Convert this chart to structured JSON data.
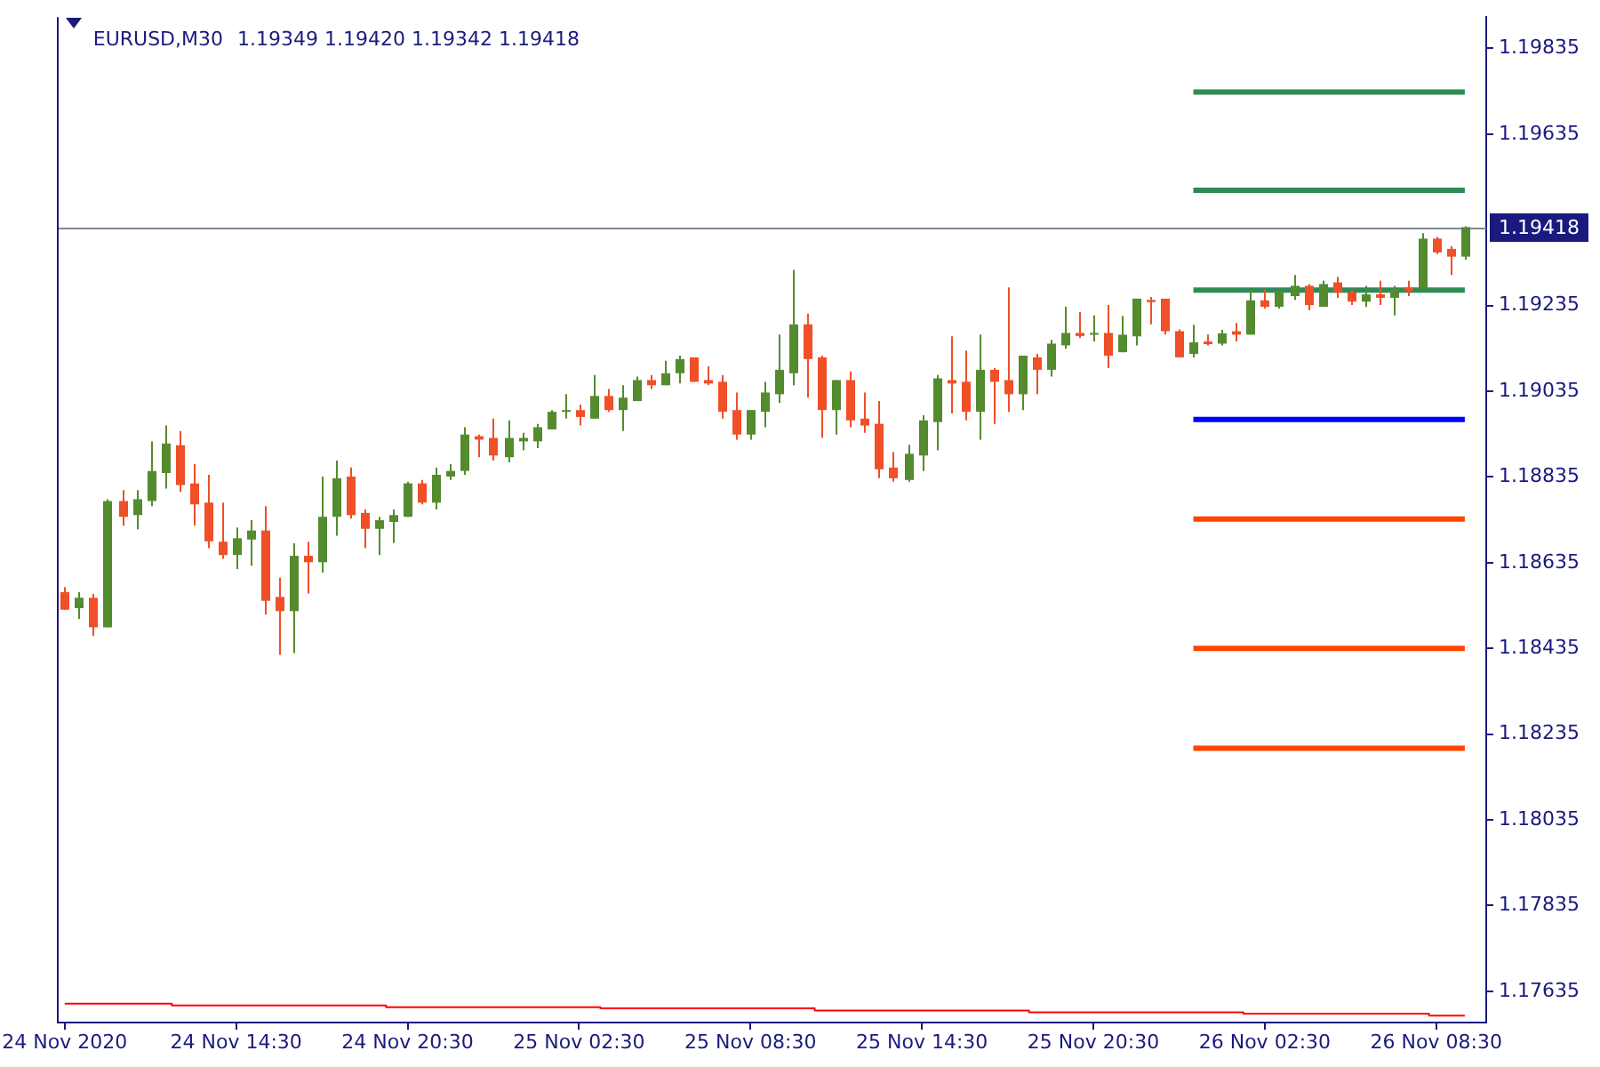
{
  "chart_data": {
    "type": "candlestick",
    "title": "EURUSD,M30",
    "subtitle": "1.19349 1.19420 1.19342 1.19418",
    "categories": [
      "24 Nov 2020",
      null,
      null,
      null,
      null,
      null,
      null,
      null,
      null,
      null,
      null,
      null,
      "24 Nov 14:30",
      null,
      null,
      null,
      null,
      null,
      null,
      null,
      null,
      null,
      null,
      null,
      "24 Nov 20:30",
      null,
      null,
      null,
      null,
      null,
      null,
      null,
      null,
      null,
      null,
      null,
      "25 Nov 02:30",
      null,
      null,
      null,
      null,
      null,
      null,
      null,
      null,
      null,
      null,
      null,
      "25 Nov 08:30",
      null,
      null,
      null,
      null,
      null,
      null,
      null,
      null,
      null,
      null,
      null,
      "25 Nov 14:30",
      null,
      null,
      null,
      null,
      null,
      null,
      null,
      null,
      null,
      null,
      null,
      "25 Nov 20:30",
      null,
      null,
      null,
      null,
      null,
      null,
      null,
      null,
      null,
      null,
      null,
      "26 Nov 02:30",
      null,
      null,
      null,
      null,
      null,
      null,
      null,
      null,
      null,
      null,
      null,
      "26 Nov 08:30",
      null,
      null
    ],
    "ohlc": [
      [
        1.18566,
        1.18578,
        1.18525,
        1.18525
      ],
      [
        1.18529,
        1.18566,
        1.18504,
        1.18553
      ],
      [
        1.18553,
        1.18562,
        1.18464,
        1.18484
      ],
      [
        1.18484,
        1.18783,
        1.18484,
        1.18779
      ],
      [
        1.18779,
        1.18804,
        1.18721,
        1.18742
      ],
      [
        1.18746,
        1.18804,
        1.18713,
        1.18783
      ],
      [
        1.18779,
        1.18918,
        1.18767,
        1.18849
      ],
      [
        1.18844,
        1.18955,
        1.18808,
        1.18913
      ],
      [
        1.18909,
        1.18942,
        1.188,
        1.18816
      ],
      [
        1.1882,
        1.18865,
        1.18721,
        1.18771
      ],
      [
        1.18775,
        1.1884,
        1.18669,
        1.18685
      ],
      [
        1.18684,
        1.18775,
        1.18644,
        1.18653
      ],
      [
        1.18653,
        1.18717,
        1.1862,
        1.18692
      ],
      [
        1.18689,
        1.18734,
        1.18628,
        1.1871
      ],
      [
        1.1871,
        1.18767,
        1.18514,
        1.18546
      ],
      [
        1.18555,
        1.186,
        1.1842,
        1.18522
      ],
      [
        1.18522,
        1.1868,
        1.18424,
        1.18651
      ],
      [
        1.18651,
        1.18684,
        1.18563,
        1.18636
      ],
      [
        1.18636,
        1.18836,
        1.18612,
        1.18742
      ],
      [
        1.18742,
        1.18873,
        1.18698,
        1.18832
      ],
      [
        1.18836,
        1.18857,
        1.18738,
        1.18746
      ],
      [
        1.18751,
        1.18759,
        1.18669,
        1.18714
      ],
      [
        1.18714,
        1.18742,
        1.18653,
        1.18734
      ],
      [
        1.1873,
        1.18759,
        1.18681,
        1.18746
      ],
      [
        1.18742,
        1.18824,
        1.18742,
        1.1882
      ],
      [
        1.1882,
        1.18828,
        1.18771,
        1.18775
      ],
      [
        1.18775,
        1.18857,
        1.18759,
        1.1884
      ],
      [
        1.18836,
        1.18865,
        1.18828,
        1.18849
      ],
      [
        1.18849,
        1.18951,
        1.1884,
        1.18934
      ],
      [
        1.1893,
        1.18934,
        1.18881,
        1.18922
      ],
      [
        1.18926,
        1.18971,
        1.18873,
        1.18885
      ],
      [
        1.18881,
        1.18967,
        1.18869,
        1.18926
      ],
      [
        1.18918,
        1.18938,
        1.18897,
        1.18926
      ],
      [
        1.18918,
        1.18959,
        1.18902,
        1.18951
      ],
      [
        1.18946,
        1.18991,
        1.18946,
        1.18987
      ],
      [
        1.18987,
        1.19028,
        1.18971,
        1.18991
      ],
      [
        1.18991,
        1.19004,
        1.18955,
        1.18975
      ],
      [
        1.18971,
        1.19073,
        1.18971,
        1.19024
      ],
      [
        1.19024,
        1.1904,
        1.18987,
        1.18991
      ],
      [
        1.18991,
        1.19049,
        1.18942,
        1.1902
      ],
      [
        1.19012,
        1.19069,
        1.19012,
        1.19061
      ],
      [
        1.19061,
        1.19073,
        1.1904,
        1.19049
      ],
      [
        1.19049,
        1.19106,
        1.19049,
        1.19077
      ],
      [
        1.19077,
        1.19118,
        1.19053,
        1.1911
      ],
      [
        1.19114,
        1.19114,
        1.19057,
        1.19057
      ],
      [
        1.19061,
        1.19093,
        1.19049,
        1.19053
      ],
      [
        1.19057,
        1.19073,
        1.18971,
        1.18987
      ],
      [
        1.18991,
        1.19032,
        1.18922,
        1.18934
      ],
      [
        1.18934,
        1.18991,
        1.18922,
        1.18991
      ],
      [
        1.18987,
        1.19057,
        1.18951,
        1.19032
      ],
      [
        1.19028,
        1.19167,
        1.19008,
        1.19085
      ],
      [
        1.19077,
        1.19318,
        1.19049,
        1.19191
      ],
      [
        1.19191,
        1.19216,
        1.1902,
        1.1911
      ],
      [
        1.19114,
        1.19118,
        1.18926,
        1.18991
      ],
      [
        1.18991,
        1.19061,
        1.18934,
        1.19061
      ],
      [
        1.19061,
        1.19081,
        1.18951,
        1.18967
      ],
      [
        1.18971,
        1.19032,
        1.18938,
        1.18955
      ],
      [
        1.18959,
        1.19012,
        1.18832,
        1.18853
      ],
      [
        1.18857,
        1.18893,
        1.18824,
        1.18832
      ],
      [
        1.18828,
        1.1891,
        1.18824,
        1.18889
      ],
      [
        1.18885,
        1.18979,
        1.18849,
        1.18967
      ],
      [
        1.18963,
        1.19073,
        1.18897,
        1.19065
      ],
      [
        1.19061,
        1.19163,
        1.18983,
        1.19053
      ],
      [
        1.19057,
        1.1913,
        1.18967,
        1.18987
      ],
      [
        1.18987,
        1.19167,
        1.18922,
        1.19085
      ],
      [
        1.19085,
        1.19089,
        1.18959,
        1.19057
      ],
      [
        1.19061,
        1.19277,
        1.18987,
        1.19028
      ],
      [
        1.19028,
        1.19118,
        1.18991,
        1.19118
      ],
      [
        1.19114,
        1.19122,
        1.19028,
        1.19085
      ],
      [
        1.19085,
        1.19155,
        1.19069,
        1.19146
      ],
      [
        1.19142,
        1.19232,
        1.19134,
        1.19171
      ],
      [
        1.19171,
        1.1922,
        1.19159,
        1.19164
      ],
      [
        1.19167,
        1.19212,
        1.19151,
        1.19171
      ],
      [
        1.19171,
        1.19236,
        1.19089,
        1.19118
      ],
      [
        1.19126,
        1.19211,
        1.19126,
        1.19167
      ],
      [
        1.19163,
        1.19251,
        1.19142,
        1.19251
      ],
      [
        1.19248,
        1.19255,
        1.19191,
        1.19243
      ],
      [
        1.19251,
        1.19251,
        1.19167,
        1.19175
      ],
      [
        1.19175,
        1.19179,
        1.19114,
        1.19114
      ],
      [
        1.19122,
        1.1919,
        1.19114,
        1.19149
      ],
      [
        1.19151,
        1.19167,
        1.19142,
        1.19145
      ],
      [
        1.19146,
        1.19178,
        1.19142,
        1.1917
      ],
      [
        1.19175,
        1.19194,
        1.19151,
        1.19167
      ],
      [
        1.19167,
        1.19273,
        1.19167,
        1.19247
      ],
      [
        1.19247,
        1.19273,
        1.19228,
        1.19232
      ],
      [
        1.19232,
        1.19269,
        1.19228,
        1.19269
      ],
      [
        1.19257,
        1.19306,
        1.19248,
        1.19281
      ],
      [
        1.19281,
        1.19285,
        1.19224,
        1.19236
      ],
      [
        1.19232,
        1.19293,
        1.19232,
        1.19285
      ],
      [
        1.19289,
        1.19302,
        1.19253,
        1.19265
      ],
      [
        1.19266,
        1.19273,
        1.19236,
        1.19244
      ],
      [
        1.19244,
        1.19281,
        1.19232,
        1.19261
      ],
      [
        1.19261,
        1.19293,
        1.19236,
        1.19253
      ],
      [
        1.19253,
        1.19281,
        1.19212,
        1.19273
      ],
      [
        1.19277,
        1.19293,
        1.19257,
        1.19269
      ],
      [
        1.19273,
        1.19404,
        1.19273,
        1.19391
      ],
      [
        1.19391,
        1.19395,
        1.19355,
        1.19359
      ],
      [
        1.19367,
        1.19373,
        1.19306,
        1.19349
      ],
      [
        1.19349,
        1.1942,
        1.19342,
        1.19418
      ]
    ],
    "colors": [
      "#f04f28",
      "#558b2f",
      "#f04f28",
      "#558b2f",
      "#f04f28",
      "#558b2f",
      "#558b2f",
      "#558b2f",
      "#f04f28",
      "#f04f28",
      "#f04f28",
      "#f04f28",
      "#558b2f",
      "#558b2f",
      "#f04f28",
      "#f04f28",
      "#558b2f",
      "#f04f28",
      "#558b2f",
      "#558b2f",
      "#f04f28",
      "#f04f28",
      "#558b2f",
      "#558b2f",
      "#558b2f",
      "#f04f28",
      "#558b2f",
      "#558b2f",
      "#558b2f",
      "#f04f28",
      "#f04f28",
      "#558b2f",
      "#558b2f",
      "#558b2f",
      "#558b2f",
      "#558b2f",
      "#f04f28",
      "#558b2f",
      "#f04f28",
      "#558b2f",
      "#558b2f",
      "#f04f28",
      "#558b2f",
      "#558b2f",
      "#f04f28",
      "#f04f28",
      "#f04f28",
      "#f04f28",
      "#558b2f",
      "#558b2f",
      "#558b2f",
      "#558b2f",
      "#f04f28",
      "#f04f28",
      "#558b2f",
      "#f04f28",
      "#f04f28",
      "#f04f28",
      "#f04f28",
      "#558b2f",
      "#558b2f",
      "#558b2f",
      "#f04f28",
      "#f04f28",
      "#558b2f",
      "#f04f28",
      "#f04f28",
      "#558b2f",
      "#f04f28",
      "#558b2f",
      "#558b2f",
      "#f04f28",
      "#558b2f",
      "#f04f28",
      "#558b2f",
      "#558b2f",
      "#f04f28",
      "#f04f28",
      "#f04f28",
      "#558b2f",
      "#f04f28",
      "#558b2f",
      "#f04f28",
      "#558b2f",
      "#f04f28",
      "#558b2f",
      "#558b2f",
      "#f04f28",
      "#558b2f",
      "#f04f28",
      "#f04f28",
      "#558b2f",
      "#f04f28",
      "#558b2f",
      "#f04f28",
      "#558b2f",
      "#f04f28",
      "#f04f28",
      "#558b2f"
    ],
    "series": [
      {
        "type": "line",
        "color": "#2e8b57",
        "values": [
          null,
          null,
          null,
          null,
          null,
          null,
          null,
          null,
          null,
          null,
          null,
          null,
          null,
          null,
          null,
          null,
          null,
          null,
          null,
          null,
          null,
          null,
          null,
          null,
          null,
          null,
          null,
          null,
          null,
          null,
          null,
          null,
          null,
          null,
          null,
          null,
          null,
          null,
          null,
          null,
          null,
          null,
          null,
          null,
          null,
          null,
          null,
          null,
          null,
          null,
          null,
          null,
          null,
          null,
          null,
          null,
          null,
          null,
          null,
          null,
          null,
          null,
          null,
          null,
          null,
          null,
          null,
          null,
          null,
          null,
          null,
          null,
          null,
          null,
          null,
          null,
          null,
          null,
          null,
          1.19733,
          1.19733,
          1.19733,
          1.19733,
          1.19733,
          1.19733,
          1.19733,
          1.19733,
          1.19733,
          1.19733,
          1.19733,
          1.19733,
          1.19733,
          1.19733,
          1.19733,
          1.19733,
          1.19733,
          1.19733,
          1.19733,
          1.19733
        ]
      },
      {
        "type": "line",
        "color": "#2e8b57",
        "values": [
          null,
          null,
          null,
          null,
          null,
          null,
          null,
          null,
          null,
          null,
          null,
          null,
          null,
          null,
          null,
          null,
          null,
          null,
          null,
          null,
          null,
          null,
          null,
          null,
          null,
          null,
          null,
          null,
          null,
          null,
          null,
          null,
          null,
          null,
          null,
          null,
          null,
          null,
          null,
          null,
          null,
          null,
          null,
          null,
          null,
          null,
          null,
          null,
          null,
          null,
          null,
          null,
          null,
          null,
          null,
          null,
          null,
          null,
          null,
          null,
          null,
          null,
          null,
          null,
          null,
          null,
          null,
          null,
          null,
          null,
          null,
          null,
          null,
          null,
          null,
          null,
          null,
          null,
          null,
          1.19504,
          1.19504,
          1.19504,
          1.19504,
          1.19504,
          1.19504,
          1.19504,
          1.19504,
          1.19504,
          1.19504,
          1.19504,
          1.19504,
          1.19504,
          1.19504,
          1.19504,
          1.19504,
          1.19504,
          1.19504,
          1.19504,
          1.19504
        ]
      },
      {
        "type": "line",
        "color": "#2e8b57",
        "values": [
          null,
          null,
          null,
          null,
          null,
          null,
          null,
          null,
          null,
          null,
          null,
          null,
          null,
          null,
          null,
          null,
          null,
          null,
          null,
          null,
          null,
          null,
          null,
          null,
          null,
          null,
          null,
          null,
          null,
          null,
          null,
          null,
          null,
          null,
          null,
          null,
          null,
          null,
          null,
          null,
          null,
          null,
          null,
          null,
          null,
          null,
          null,
          null,
          null,
          null,
          null,
          null,
          null,
          null,
          null,
          null,
          null,
          null,
          null,
          null,
          null,
          null,
          null,
          null,
          null,
          null,
          null,
          null,
          null,
          null,
          null,
          null,
          null,
          null,
          null,
          null,
          null,
          null,
          null,
          1.19271,
          1.19271,
          1.19271,
          1.19271,
          1.19271,
          1.19271,
          1.19271,
          1.19271,
          1.19271,
          1.19271,
          1.19271,
          1.19271,
          1.19271,
          1.19271,
          1.19271,
          1.19271,
          1.19271,
          1.19271,
          1.19271,
          1.19271
        ]
      },
      {
        "type": "line",
        "color": "#0000ff",
        "values": [
          null,
          null,
          null,
          null,
          null,
          null,
          null,
          null,
          null,
          null,
          null,
          null,
          null,
          null,
          null,
          null,
          null,
          null,
          null,
          null,
          null,
          null,
          null,
          null,
          null,
          null,
          null,
          null,
          null,
          null,
          null,
          null,
          null,
          null,
          null,
          null,
          null,
          null,
          null,
          null,
          null,
          null,
          null,
          null,
          null,
          null,
          null,
          null,
          null,
          null,
          null,
          null,
          null,
          null,
          null,
          null,
          null,
          null,
          null,
          null,
          null,
          null,
          null,
          null,
          null,
          null,
          null,
          null,
          null,
          null,
          null,
          null,
          null,
          null,
          null,
          null,
          null,
          null,
          null,
          1.18969,
          1.18969,
          1.18969,
          1.18969,
          1.18969,
          1.18969,
          1.18969,
          1.18969,
          1.18969,
          1.18969,
          1.18969,
          1.18969,
          1.18969,
          1.18969,
          1.18969,
          1.18969,
          1.18969,
          1.18969,
          1.18969,
          1.18969
        ]
      },
      {
        "type": "line",
        "color": "#ff4500",
        "values": [
          null,
          null,
          null,
          null,
          null,
          null,
          null,
          null,
          null,
          null,
          null,
          null,
          null,
          null,
          null,
          null,
          null,
          null,
          null,
          null,
          null,
          null,
          null,
          null,
          null,
          null,
          null,
          null,
          null,
          null,
          null,
          null,
          null,
          null,
          null,
          null,
          null,
          null,
          null,
          null,
          null,
          null,
          null,
          null,
          null,
          null,
          null,
          null,
          null,
          null,
          null,
          null,
          null,
          null,
          null,
          null,
          null,
          null,
          null,
          null,
          null,
          null,
          null,
          null,
          null,
          null,
          null,
          null,
          null,
          null,
          null,
          null,
          null,
          null,
          null,
          null,
          null,
          null,
          null,
          1.18737,
          1.18737,
          1.18737,
          1.18737,
          1.18737,
          1.18737,
          1.18737,
          1.18737,
          1.18737,
          1.18737,
          1.18737,
          1.18737,
          1.18737,
          1.18737,
          1.18737,
          1.18737,
          1.18737,
          1.18737,
          1.18737,
          1.18737
        ]
      },
      {
        "type": "line",
        "color": "#ff4500",
        "values": [
          null,
          null,
          null,
          null,
          null,
          null,
          null,
          null,
          null,
          null,
          null,
          null,
          null,
          null,
          null,
          null,
          null,
          null,
          null,
          null,
          null,
          null,
          null,
          null,
          null,
          null,
          null,
          null,
          null,
          null,
          null,
          null,
          null,
          null,
          null,
          null,
          null,
          null,
          null,
          null,
          null,
          null,
          null,
          null,
          null,
          null,
          null,
          null,
          null,
          null,
          null,
          null,
          null,
          null,
          null,
          null,
          null,
          null,
          null,
          null,
          null,
          null,
          null,
          null,
          null,
          null,
          null,
          null,
          null,
          null,
          null,
          null,
          null,
          null,
          null,
          null,
          null,
          null,
          null,
          1.18435,
          1.18435,
          1.18435,
          1.18435,
          1.18435,
          1.18435,
          1.18435,
          1.18435,
          1.18435,
          1.18435,
          1.18435,
          1.18435,
          1.18435,
          1.18435,
          1.18435,
          1.18435,
          1.18435,
          1.18435,
          1.18435,
          1.18435
        ]
      },
      {
        "type": "line",
        "color": "#ff4500",
        "values": [
          null,
          null,
          null,
          null,
          null,
          null,
          null,
          null,
          null,
          null,
          null,
          null,
          null,
          null,
          null,
          null,
          null,
          null,
          null,
          null,
          null,
          null,
          null,
          null,
          null,
          null,
          null,
          null,
          null,
          null,
          null,
          null,
          null,
          null,
          null,
          null,
          null,
          null,
          null,
          null,
          null,
          null,
          null,
          null,
          null,
          null,
          null,
          null,
          null,
          null,
          null,
          null,
          null,
          null,
          null,
          null,
          null,
          null,
          null,
          null,
          null,
          null,
          null,
          null,
          null,
          null,
          null,
          null,
          null,
          null,
          null,
          null,
          null,
          null,
          null,
          null,
          null,
          null,
          null,
          1.18202,
          1.18202,
          1.18202,
          1.18202,
          1.18202,
          1.18202,
          1.18202,
          1.18202,
          1.18202,
          1.18202,
          1.18202,
          1.18202,
          1.18202,
          1.18202,
          1.18202,
          1.18202,
          1.18202,
          1.18202,
          1.18202,
          1.18202
        ]
      },
      {
        "type": "step",
        "color": "#ff0000",
        "values": [
          1.17606,
          1.17606,
          1.17606,
          1.17606,
          1.17606,
          1.17606,
          1.17606,
          1.17606,
          1.17602,
          1.17602,
          1.17602,
          1.17602,
          1.17602,
          1.17602,
          1.17602,
          1.17602,
          1.17602,
          1.17602,
          1.17602,
          1.17602,
          1.17602,
          1.17602,
          1.17602,
          1.17598,
          1.17598,
          1.17598,
          1.17598,
          1.17598,
          1.17598,
          1.17598,
          1.17598,
          1.17598,
          1.17598,
          1.17598,
          1.17598,
          1.17598,
          1.17598,
          1.17598,
          1.17595,
          1.17595,
          1.17595,
          1.17595,
          1.17595,
          1.17595,
          1.17595,
          1.17595,
          1.17595,
          1.17595,
          1.17595,
          1.17595,
          1.17595,
          1.17595,
          1.17595,
          1.1759,
          1.1759,
          1.1759,
          1.1759,
          1.1759,
          1.1759,
          1.1759,
          1.1759,
          1.1759,
          1.1759,
          1.1759,
          1.1759,
          1.1759,
          1.1759,
          1.1759,
          1.17586,
          1.17586,
          1.17586,
          1.17586,
          1.17586,
          1.17586,
          1.17586,
          1.17586,
          1.17586,
          1.17586,
          1.17586,
          1.17586,
          1.17586,
          1.17586,
          1.17586,
          1.17583,
          1.17583,
          1.17583,
          1.17583,
          1.17583,
          1.17583,
          1.17583,
          1.17583,
          1.17583,
          1.17583,
          1.17583,
          1.17583,
          1.17583,
          1.17578,
          1.17578,
          1.17578
        ]
      }
    ],
    "ref_lines": [
      {
        "axis": "y",
        "value": 1.19418,
        "label": "1.19418",
        "color": "#7f8a96"
      }
    ],
    "ylim": [
      1.17562,
      1.19908
    ],
    "yticks": [
      1.19835,
      1.19635,
      1.19235,
      1.19035,
      1.18835,
      1.18635,
      1.18435,
      1.18235,
      1.18035,
      1.17835,
      1.17635
    ]
  }
}
